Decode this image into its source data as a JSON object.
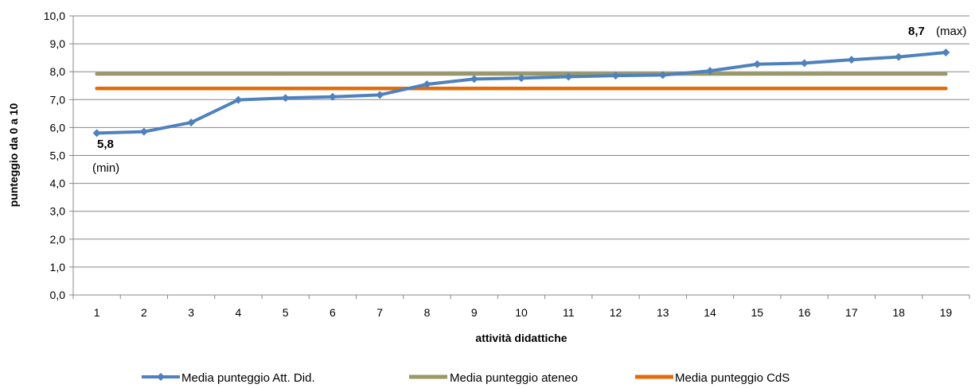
{
  "chart_data": {
    "type": "line",
    "title": "",
    "xlabel": "attività didattiche",
    "ylabel": "punteggio da 0 a 10",
    "x": [
      1,
      2,
      3,
      4,
      5,
      6,
      7,
      8,
      9,
      10,
      11,
      12,
      13,
      14,
      15,
      16,
      17,
      18,
      19
    ],
    "ylim": [
      0,
      10
    ],
    "yticks": [
      "0,0",
      "1,0",
      "2,0",
      "3,0",
      "4,0",
      "5,0",
      "6,0",
      "7,0",
      "8,0",
      "9,0",
      "10,0"
    ],
    "grid": true,
    "legend_position": "bottom",
    "series": [
      {
        "name": "Media punteggio Att. Did.",
        "color": "#4F81BD",
        "marker": "diamond",
        "values": [
          5.8,
          5.85,
          6.18,
          6.99,
          7.06,
          7.1,
          7.17,
          7.55,
          7.74,
          7.77,
          7.82,
          7.86,
          7.88,
          8.03,
          8.27,
          8.31,
          8.43,
          8.53,
          8.69
        ]
      },
      {
        "name": "Media punteggio ateneo",
        "color": "#9A9866",
        "marker": "none",
        "values": [
          7.92,
          7.92,
          7.92,
          7.92,
          7.92,
          7.92,
          7.92,
          7.92,
          7.92,
          7.92,
          7.92,
          7.92,
          7.92,
          7.92,
          7.92,
          7.92,
          7.92,
          7.92,
          7.92
        ]
      },
      {
        "name": "Media punteggio CdS",
        "color": "#E36C09",
        "marker": "none",
        "values": [
          7.4,
          7.4,
          7.4,
          7.4,
          7.4,
          7.4,
          7.4,
          7.4,
          7.4,
          7.4,
          7.4,
          7.4,
          7.4,
          7.4,
          7.4,
          7.4,
          7.4,
          7.4,
          7.4
        ]
      }
    ],
    "annotations": {
      "min_value": "5,8",
      "min_label": "(min)",
      "max_value": "8,7",
      "max_label": "(max)"
    }
  }
}
